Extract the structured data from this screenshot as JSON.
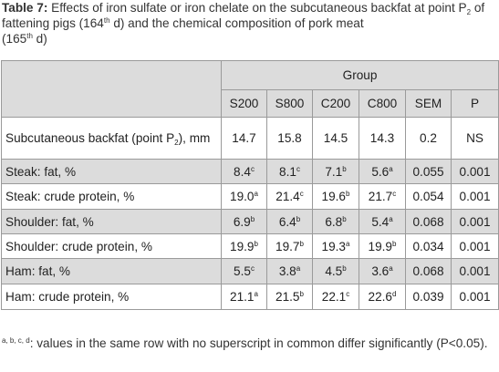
{
  "caption": {
    "label": "Table 7:",
    "line1_text": "Effects of iron sulfate or iron chelate on the subcutaneous backfat at",
    "point_label": "point P",
    "point_sub": "2",
    "of_text": "of fattening pigs (164",
    "th1": "th",
    "d_text": "d) and the chemical composition of pork meat",
    "paren_open": "(165",
    "th2": "th",
    "paren_close": "d)"
  },
  "table": {
    "group_header": "Group",
    "columns": [
      "S200",
      "S800",
      "C200",
      "C800",
      "SEM",
      "P"
    ],
    "rows": [
      {
        "label": "Subcutaneous backfat (point P",
        "label_sub": "2",
        "label_end": "), mm",
        "cells": [
          {
            "v": "14.7",
            "s": ""
          },
          {
            "v": "15.8",
            "s": ""
          },
          {
            "v": "14.5",
            "s": ""
          },
          {
            "v": "14.3",
            "s": ""
          },
          {
            "v": "0.2",
            "s": ""
          },
          {
            "v": "NS",
            "s": ""
          }
        ]
      },
      {
        "label": "Steak: fat, %",
        "cells": [
          {
            "v": "8.4",
            "s": "c"
          },
          {
            "v": "8.1",
            "s": "c"
          },
          {
            "v": "7.1",
            "s": "b"
          },
          {
            "v": "5.6",
            "s": "a"
          },
          {
            "v": "0.055",
            "s": ""
          },
          {
            "v": "0.001",
            "s": ""
          }
        ]
      },
      {
        "label": "Steak: crude protein, %",
        "cells": [
          {
            "v": "19.0",
            "s": "a"
          },
          {
            "v": "21.4",
            "s": "c"
          },
          {
            "v": "19.6",
            "s": "b"
          },
          {
            "v": "21.7",
            "s": "c"
          },
          {
            "v": "0.054",
            "s": ""
          },
          {
            "v": "0.001",
            "s": ""
          }
        ]
      },
      {
        "label": "Shoulder: fat, %",
        "cells": [
          {
            "v": "6.9",
            "s": "b"
          },
          {
            "v": "6.4",
            "s": "b"
          },
          {
            "v": "6.8",
            "s": "b"
          },
          {
            "v": "5.4",
            "s": "a"
          },
          {
            "v": "0.068",
            "s": ""
          },
          {
            "v": "0.001",
            "s": ""
          }
        ]
      },
      {
        "label": "Shoulder: crude protein, %",
        "cells": [
          {
            "v": "19.9",
            "s": "b"
          },
          {
            "v": "19.7",
            "s": "b"
          },
          {
            "v": "19.3",
            "s": "a"
          },
          {
            "v": "19.9",
            "s": "b"
          },
          {
            "v": "0.034",
            "s": ""
          },
          {
            "v": "0.001",
            "s": ""
          }
        ]
      },
      {
        "label": "Ham: fat, %",
        "cells": [
          {
            "v": "5.5",
            "s": "c"
          },
          {
            "v": "3.8",
            "s": "a"
          },
          {
            "v": "4.5",
            "s": "b"
          },
          {
            "v": "3.6",
            "s": "a"
          },
          {
            "v": "0.068",
            "s": ""
          },
          {
            "v": "0.001",
            "s": ""
          }
        ]
      },
      {
        "label": "Ham: crude protein, %",
        "cells": [
          {
            "v": "21.1",
            "s": "a"
          },
          {
            "v": "21.5",
            "s": "b"
          },
          {
            "v": "22.1",
            "s": "c"
          },
          {
            "v": "22.6",
            "s": "d"
          },
          {
            "v": "0.039",
            "s": ""
          },
          {
            "v": "0.001",
            "s": ""
          }
        ]
      }
    ]
  },
  "footnote": {
    "sup": "a, b, c, d",
    "text": ": values in the same row with no superscript in common differ significantly (P<0.05)."
  },
  "colors": {
    "shaded_row": "#dcdcdc",
    "border": "#9a9a9a"
  }
}
